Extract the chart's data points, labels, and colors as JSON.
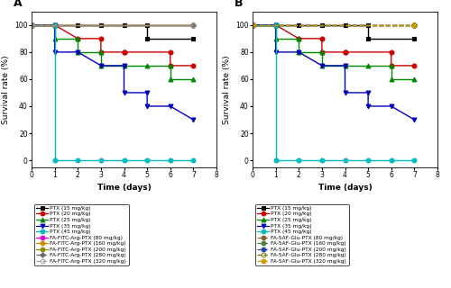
{
  "panel_A": {
    "title": "A",
    "series": [
      {
        "label": "PTX (15 mg/kg)",
        "color": "#000000",
        "marker": "s",
        "linestyle": "-",
        "x": [
          0,
          1,
          2,
          3,
          4,
          5,
          5,
          7
        ],
        "y": [
          100,
          100,
          100,
          100,
          100,
          100,
          90,
          90
        ]
      },
      {
        "label": "PTX (20 mg/kg)",
        "color": "#cc0000",
        "marker": "o",
        "linestyle": "-",
        "x": [
          0,
          1,
          2,
          3,
          3,
          4,
          4,
          6,
          6,
          7
        ],
        "y": [
          100,
          100,
          90,
          90,
          80,
          80,
          80,
          80,
          70,
          70
        ]
      },
      {
        "label": "PTX (25 mg/kg)",
        "color": "#008800",
        "marker": "^",
        "linestyle": "-",
        "x": [
          0,
          1,
          1,
          2,
          2,
          3,
          3,
          4,
          5,
          6,
          6,
          7
        ],
        "y": [
          100,
          100,
          90,
          90,
          80,
          80,
          70,
          70,
          70,
          70,
          60,
          60
        ]
      },
      {
        "label": "PTX (35 mg/kg)",
        "color": "#0000bb",
        "marker": "v",
        "linestyle": "-",
        "x": [
          0,
          1,
          1,
          2,
          3,
          4,
          4,
          5,
          5,
          6,
          7
        ],
        "y": [
          100,
          100,
          80,
          80,
          70,
          70,
          50,
          50,
          40,
          40,
          30
        ]
      },
      {
        "label": "PTX (45 mg/kg)",
        "color": "#00bbbb",
        "marker": "o",
        "linestyle": "-",
        "x": [
          0,
          1,
          1,
          2,
          3,
          4,
          5,
          6,
          7
        ],
        "y": [
          100,
          100,
          0,
          0,
          0,
          0,
          0,
          0,
          0
        ]
      },
      {
        "label": "FA-FITC-Arg-PTX (80 mg/kg)",
        "color": "#dd00dd",
        "marker": "o",
        "linestyle": "-",
        "fillstyle": "full",
        "x": [
          0,
          7
        ],
        "y": [
          100,
          100
        ]
      },
      {
        "label": "FA-FITC-Arg-PTX (160 mg/kg)",
        "color": "#cc8800",
        "marker": "o",
        "linestyle": "-",
        "fillstyle": "full",
        "x": [
          0,
          7
        ],
        "y": [
          100,
          100
        ]
      },
      {
        "label": "FA-FITC-Arg-PTX (200 mg/kg)",
        "color": "#888800",
        "marker": "o",
        "linestyle": "-",
        "fillstyle": "full",
        "x": [
          0,
          7
        ],
        "y": [
          100,
          100
        ]
      },
      {
        "label": "FA-FITC-Arg-PTX (280 mg/kg)",
        "color": "#666666",
        "marker": "P",
        "linestyle": "--",
        "fillstyle": "full",
        "x": [
          0,
          7
        ],
        "y": [
          100,
          100
        ]
      },
      {
        "label": "FA-FITC-Arg-PTX (320 mg/kg)",
        "color": "#999999",
        "marker": "o",
        "linestyle": "--",
        "fillstyle": "none",
        "x": [
          0,
          7
        ],
        "y": [
          100,
          100
        ]
      }
    ]
  },
  "panel_B": {
    "title": "B",
    "series": [
      {
        "label": "PTX (15 mg/kg)",
        "color": "#000000",
        "marker": "s",
        "linestyle": "-",
        "fillstyle": "full",
        "x": [
          0,
          1,
          2,
          3,
          4,
          5,
          5,
          7
        ],
        "y": [
          100,
          100,
          100,
          100,
          100,
          100,
          90,
          90
        ]
      },
      {
        "label": "PTX (20 mg/kg)",
        "color": "#cc0000",
        "marker": "o",
        "linestyle": "-",
        "fillstyle": "full",
        "x": [
          0,
          1,
          2,
          3,
          3,
          4,
          4,
          6,
          6,
          7
        ],
        "y": [
          100,
          100,
          90,
          90,
          80,
          80,
          80,
          80,
          70,
          70
        ]
      },
      {
        "label": "PTX (25 mg/kg)",
        "color": "#008800",
        "marker": "^",
        "linestyle": "-",
        "fillstyle": "full",
        "x": [
          0,
          1,
          1,
          2,
          2,
          3,
          3,
          4,
          5,
          6,
          6,
          7
        ],
        "y": [
          100,
          100,
          90,
          90,
          80,
          80,
          70,
          70,
          70,
          70,
          60,
          60
        ]
      },
      {
        "label": "PTX (35 mg/kg)",
        "color": "#0000bb",
        "marker": "v",
        "linestyle": "-",
        "fillstyle": "full",
        "x": [
          0,
          1,
          1,
          2,
          3,
          4,
          4,
          5,
          5,
          6,
          7
        ],
        "y": [
          100,
          100,
          80,
          80,
          70,
          70,
          50,
          50,
          40,
          40,
          30
        ]
      },
      {
        "label": "PTX (45 mg/kg)",
        "color": "#00bbbb",
        "marker": "o",
        "linestyle": "-",
        "fillstyle": "full",
        "x": [
          0,
          1,
          1,
          2,
          3,
          4,
          5,
          6,
          7
        ],
        "y": [
          100,
          100,
          0,
          0,
          0,
          0,
          0,
          0,
          0
        ]
      },
      {
        "label": "FA-5AF-Glu-PTX (80 mg/kg)",
        "color": "#8B5A2B",
        "marker": "o",
        "linestyle": "--",
        "fillstyle": "full",
        "x": [
          0,
          7
        ],
        "y": [
          100,
          100
        ]
      },
      {
        "label": "FA-5AF-Glu-PTX (160 mg/kg)",
        "color": "#4B7B3F",
        "marker": "o",
        "linestyle": "--",
        "fillstyle": "full",
        "x": [
          0,
          7
        ],
        "y": [
          100,
          100
        ]
      },
      {
        "label": "FA-5AF-Glu-PTX (200 mg/kg)",
        "color": "#2244aa",
        "marker": "o",
        "linestyle": "--",
        "fillstyle": "full",
        "x": [
          0,
          7
        ],
        "y": [
          100,
          100
        ]
      },
      {
        "label": "FA-5AF-Glu-PTX (280 mg/kg)",
        "color": "#777700",
        "marker": "o",
        "linestyle": "--",
        "fillstyle": "none",
        "x": [
          0,
          7
        ],
        "y": [
          100,
          100
        ]
      },
      {
        "label": "FA-5AF-Glu-PTX (320 mg/kg)",
        "color": "#CC9900",
        "marker": "o",
        "linestyle": "--",
        "fillstyle": "full",
        "x": [
          0,
          7
        ],
        "y": [
          100,
          100
        ]
      }
    ]
  },
  "xlabel": "Time (days)",
  "ylabel": "Survival rate (%)",
  "xlim": [
    0,
    8
  ],
  "ylim": [
    -5,
    110
  ],
  "xticks": [
    0,
    1,
    2,
    3,
    4,
    5,
    6,
    7,
    8
  ],
  "yticks": [
    0,
    20,
    40,
    60,
    80,
    100
  ],
  "markersize": 3.5,
  "linewidth": 1.0,
  "fig_width": 5.0,
  "fig_height": 3.2,
  "dpi": 100
}
